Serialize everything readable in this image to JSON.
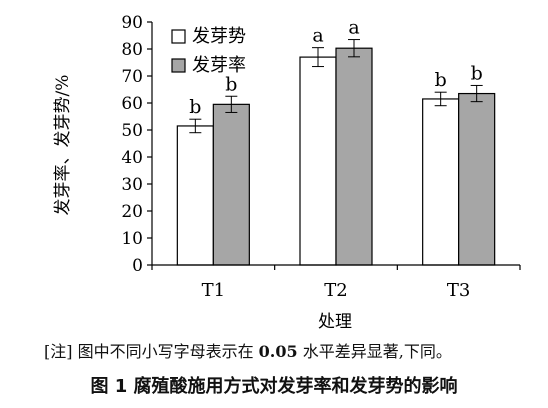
{
  "chart_data": {
    "type": "bar",
    "categories": [
      "T1",
      "T2",
      "T3"
    ],
    "series": [
      {
        "name": "发芽势",
        "values": [
          51.5,
          77,
          61.5
        ],
        "errors": [
          2.5,
          3.5,
          2.5
        ],
        "letters": [
          "b",
          "a",
          "b"
        ],
        "color": "#ffffff"
      },
      {
        "name": "发芽率",
        "values": [
          59.5,
          80.3,
          63.5
        ],
        "errors": [
          3,
          3.2,
          3
        ],
        "letters": [
          "b",
          "a",
          "b"
        ],
        "color": "#a6a6a6"
      }
    ],
    "xlabel": "处理",
    "ylabel": "发芽率、发芽势/%",
    "ylim": [
      0,
      90
    ],
    "yticks": [
      0,
      10,
      20,
      30,
      40,
      50,
      60,
      70,
      80,
      90
    ],
    "grid": false,
    "legend": "top-left"
  },
  "note": {
    "prefix": "[注]  图中不同小写字母表示在 ",
    "value": "0.05",
    "suffix": " 水平差异显著,下同。"
  },
  "caption": "图 1   腐殖酸施用方式对发芽率和发芽势的影响"
}
